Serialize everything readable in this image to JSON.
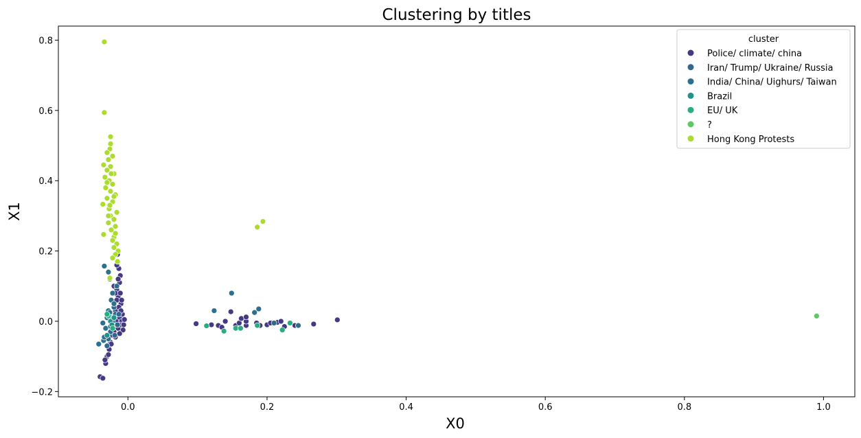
{
  "chart_data": {
    "type": "scatter",
    "title": "Clustering by titles",
    "xlabel": "X0",
    "ylabel": "X1",
    "xlim": [
      -0.1,
      1.045
    ],
    "ylim": [
      -0.215,
      0.84
    ],
    "xticks": [
      0.0,
      0.2,
      0.4,
      0.6,
      0.8,
      1.0
    ],
    "xtick_labels": [
      "0.0",
      "0.2",
      "0.4",
      "0.6",
      "0.8",
      "1.0"
    ],
    "yticks": [
      -0.2,
      0.0,
      0.2,
      0.4,
      0.6,
      0.8
    ],
    "ytick_labels": [
      "−0.2",
      "0.0",
      "0.2",
      "0.4",
      "0.6",
      "0.8"
    ],
    "grid": false,
    "legend": {
      "title": "cluster",
      "placement": "top-right"
    },
    "series": [
      {
        "name": "Police/ climate/ china",
        "color": "#443983",
        "points": [
          [
            -0.015,
            -0.005
          ],
          [
            -0.012,
            0.01
          ],
          [
            -0.018,
            0.03
          ],
          [
            -0.01,
            0.05
          ],
          [
            -0.014,
            0.07
          ],
          [
            -0.016,
            0.09
          ],
          [
            -0.012,
            0.11
          ],
          [
            -0.011,
            0.13
          ],
          [
            -0.013,
            0.15
          ],
          [
            -0.015,
            0.19
          ],
          [
            -0.017,
            0.0
          ],
          [
            -0.019,
            -0.02
          ],
          [
            -0.022,
            -0.04
          ],
          [
            -0.025,
            -0.06
          ],
          [
            -0.027,
            -0.08
          ],
          [
            -0.03,
            -0.1
          ],
          [
            -0.032,
            -0.12
          ],
          [
            -0.02,
            -0.03
          ],
          [
            -0.014,
            -0.02
          ],
          [
            -0.009,
            0.0
          ],
          [
            -0.008,
            0.02
          ],
          [
            -0.01,
            -0.01
          ],
          [
            -0.013,
            0.04
          ],
          [
            -0.016,
            0.06
          ],
          [
            -0.018,
            0.08
          ],
          [
            -0.02,
            0.1
          ],
          [
            -0.011,
            0.08
          ],
          [
            -0.009,
            0.06
          ],
          [
            -0.01,
            0.03
          ],
          [
            -0.006,
            -0.01
          ],
          [
            -0.005,
            0.005
          ],
          [
            -0.007,
            -0.025
          ],
          [
            -0.012,
            -0.035
          ],
          [
            -0.018,
            -0.045
          ],
          [
            -0.024,
            -0.065
          ],
          [
            -0.028,
            -0.095
          ],
          [
            -0.033,
            -0.11
          ],
          [
            -0.04,
            -0.158
          ],
          [
            -0.036,
            -0.162
          ],
          [
            -0.014,
            0.12
          ],
          [
            -0.016,
            0.16
          ],
          [
            0.098,
            -0.007
          ],
          [
            0.12,
            -0.01
          ],
          [
            0.13,
            -0.012
          ],
          [
            0.135,
            -0.017
          ],
          [
            0.14,
            0.0
          ],
          [
            0.148,
            0.027
          ],
          [
            0.155,
            -0.012
          ],
          [
            0.16,
            -0.005
          ],
          [
            0.163,
            0.008
          ],
          [
            0.17,
            -0.012
          ],
          [
            0.17,
            0.0
          ],
          [
            0.17,
            0.012
          ],
          [
            0.185,
            -0.005
          ],
          [
            0.19,
            -0.012
          ],
          [
            0.2,
            -0.01
          ],
          [
            0.205,
            -0.005
          ],
          [
            0.215,
            -0.003
          ],
          [
            0.225,
            -0.015
          ],
          [
            0.24,
            -0.012
          ],
          [
            0.267,
            -0.008
          ],
          [
            0.301,
            0.004
          ],
          [
            0.22,
            0.0
          ]
        ]
      },
      {
        "name": "Iran/ Trump/ Ukraine/ Russia",
        "color": "#31688e",
        "points": [
          [
            -0.018,
            0.02
          ],
          [
            -0.022,
            0.0
          ],
          [
            -0.015,
            -0.01
          ],
          [
            -0.025,
            -0.03
          ],
          [
            -0.02,
            0.04
          ],
          [
            -0.028,
            -0.05
          ],
          [
            -0.013,
            0.02
          ],
          [
            -0.03,
            -0.07
          ],
          [
            -0.024,
            0.01
          ],
          [
            -0.019,
            -0.04
          ],
          [
            0.245,
            -0.012
          ],
          [
            0.21,
            -0.005
          ]
        ]
      },
      {
        "name": "India/ China/ Uighurs/ Taiwan",
        "color": "#2d708e",
        "points": [
          [
            -0.034,
            0.157
          ],
          [
            -0.028,
            0.14
          ],
          [
            -0.026,
            0.12
          ],
          [
            -0.022,
            0.08
          ],
          [
            -0.024,
            0.06
          ],
          [
            -0.028,
            0.03
          ],
          [
            -0.03,
            0.01
          ],
          [
            -0.036,
            -0.005
          ],
          [
            -0.032,
            -0.02
          ],
          [
            -0.03,
            -0.04
          ],
          [
            -0.035,
            -0.055
          ],
          [
            -0.042,
            -0.065
          ],
          [
            -0.025,
            -0.015
          ],
          [
            -0.02,
            0.05
          ],
          [
            -0.016,
            0.1
          ],
          [
            -0.026,
            0.025
          ],
          [
            -0.034,
            -0.045
          ],
          [
            0.124,
            0.03
          ],
          [
            0.149,
            0.08
          ],
          [
            0.182,
            0.025
          ],
          [
            0.188,
            0.035
          ],
          [
            0.245,
            -0.012
          ]
        ]
      },
      {
        "name": "Brazil",
        "color": "#21918c",
        "points": [
          [
            -0.025,
            0.0
          ],
          [
            -0.02,
            0.01
          ],
          [
            -0.023,
            -0.01
          ],
          [
            -0.03,
            -0.04
          ]
        ]
      },
      {
        "name": "EU/ UK",
        "color": "#27ad81",
        "points": [
          [
            -0.028,
            0.015
          ],
          [
            -0.022,
            -0.02
          ],
          [
            -0.03,
            0.02
          ],
          [
            0.113,
            -0.013
          ],
          [
            0.138,
            -0.028
          ],
          [
            0.155,
            -0.02
          ],
          [
            0.162,
            -0.02
          ],
          [
            0.186,
            -0.012
          ],
          [
            0.222,
            -0.025
          ],
          [
            0.233,
            -0.005
          ]
        ]
      },
      {
        "name": "?",
        "color": "#5ec962",
        "points": [
          [
            0.99,
            0.015
          ]
        ]
      },
      {
        "name": "Hong Kong Protests",
        "color": "#addc30",
        "points": [
          [
            -0.034,
            0.795
          ],
          [
            -0.034,
            0.594
          ],
          [
            -0.025,
            0.525
          ],
          [
            -0.025,
            0.505
          ],
          [
            -0.026,
            0.49
          ],
          [
            -0.03,
            0.48
          ],
          [
            -0.022,
            0.47
          ],
          [
            -0.028,
            0.46
          ],
          [
            -0.035,
            0.445
          ],
          [
            -0.025,
            0.44
          ],
          [
            -0.03,
            0.43
          ],
          [
            -0.02,
            0.42
          ],
          [
            -0.033,
            0.41
          ],
          [
            -0.027,
            0.4
          ],
          [
            -0.022,
            0.39
          ],
          [
            -0.032,
            0.38
          ],
          [
            -0.025,
            0.37
          ],
          [
            -0.018,
            0.36
          ],
          [
            -0.03,
            0.35
          ],
          [
            -0.022,
            0.34
          ],
          [
            -0.036,
            0.333
          ],
          [
            -0.027,
            0.32
          ],
          [
            -0.016,
            0.31
          ],
          [
            -0.025,
            0.3
          ],
          [
            -0.02,
            0.29
          ],
          [
            -0.028,
            0.28
          ],
          [
            -0.018,
            0.27
          ],
          [
            -0.024,
            0.26
          ],
          [
            -0.035,
            0.247
          ],
          [
            -0.02,
            0.24
          ],
          [
            -0.022,
            0.23
          ],
          [
            -0.016,
            0.22
          ],
          [
            -0.02,
            0.21
          ],
          [
            -0.014,
            0.2
          ],
          [
            -0.018,
            0.19
          ],
          [
            -0.022,
            0.18
          ],
          [
            -0.015,
            0.17
          ],
          [
            -0.026,
            0.123
          ],
          [
            -0.024,
            0.42
          ],
          [
            -0.03,
            0.395
          ],
          [
            -0.02,
            0.355
          ],
          [
            -0.026,
            0.33
          ],
          [
            -0.018,
            0.25
          ],
          [
            -0.028,
            0.3
          ],
          [
            0.186,
            0.268
          ],
          [
            0.194,
            0.284
          ]
        ]
      }
    ]
  }
}
